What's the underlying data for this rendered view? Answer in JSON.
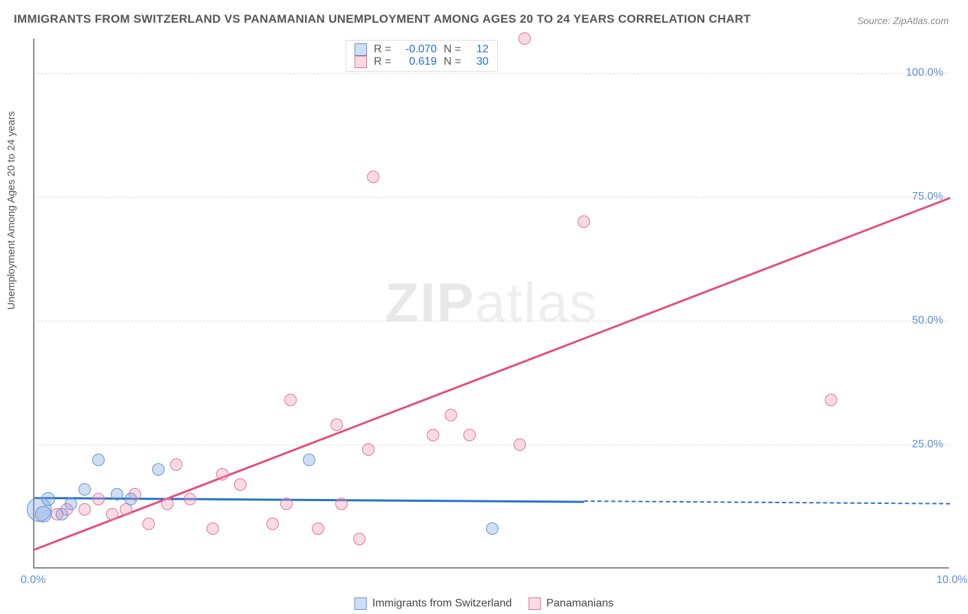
{
  "title": "IMMIGRANTS FROM SWITZERLAND VS PANAMANIAN UNEMPLOYMENT AMONG AGES 20 TO 24 YEARS CORRELATION CHART",
  "source_label": "Source: ZipAtlas.com",
  "y_axis_label": "Unemployment Among Ages 20 to 24 years",
  "watermark_bold": "ZIP",
  "watermark_light": "atlas",
  "chart": {
    "type": "scatter",
    "background_color": "#ffffff",
    "grid_color": "#dddddd",
    "axis_color": "#888888",
    "tick_color": "#5b8fd6",
    "xlim": [
      0,
      10
    ],
    "ylim": [
      0,
      107
    ],
    "x_ticks": [
      {
        "val": 0.0,
        "label": "0.0%"
      },
      {
        "val": 10.0,
        "label": "10.0%"
      }
    ],
    "y_ticks": [
      {
        "val": 25,
        "label": "25.0%"
      },
      {
        "val": 50,
        "label": "50.0%"
      },
      {
        "val": 75,
        "label": "75.0%"
      },
      {
        "val": 100,
        "label": "100.0%"
      }
    ],
    "series": [
      {
        "name": "Immigrants from Switzerland",
        "fill": "rgba(120,160,220,0.35)",
        "stroke": "#5b8fd6",
        "trend_color": "#1f6fd4",
        "trend_solid_x": [
          0,
          6.0
        ],
        "trend_dashed_x": [
          6.0,
          10.0
        ],
        "trend_y": [
          14.5,
          13.2
        ],
        "R": "-0.070",
        "N": "12",
        "points": [
          {
            "x": 0.05,
            "y": 12,
            "r": 18
          },
          {
            "x": 0.1,
            "y": 11,
            "r": 12
          },
          {
            "x": 0.15,
            "y": 14,
            "r": 10
          },
          {
            "x": 0.3,
            "y": 11,
            "r": 9
          },
          {
            "x": 0.4,
            "y": 13,
            "r": 9
          },
          {
            "x": 0.55,
            "y": 16,
            "r": 9
          },
          {
            "x": 0.7,
            "y": 22,
            "r": 9
          },
          {
            "x": 0.9,
            "y": 15,
            "r": 9
          },
          {
            "x": 1.05,
            "y": 14,
            "r": 9
          },
          {
            "x": 1.35,
            "y": 20,
            "r": 9
          },
          {
            "x": 3.0,
            "y": 22,
            "r": 9
          },
          {
            "x": 5.0,
            "y": 8,
            "r": 9
          }
        ]
      },
      {
        "name": "Panamanians",
        "fill": "rgba(240,150,180,0.35)",
        "stroke": "#e36f94",
        "trend_color": "#e84a7a",
        "trend_solid_x": [
          0,
          10.0
        ],
        "trend_y": [
          4,
          75
        ],
        "R": "0.619",
        "N": "30",
        "points": [
          {
            "x": 0.25,
            "y": 11,
            "r": 9
          },
          {
            "x": 0.35,
            "y": 12,
            "r": 9
          },
          {
            "x": 0.55,
            "y": 12,
            "r": 9
          },
          {
            "x": 0.7,
            "y": 14,
            "r": 9
          },
          {
            "x": 0.85,
            "y": 11,
            "r": 9
          },
          {
            "x": 1.0,
            "y": 12,
            "r": 9
          },
          {
            "x": 1.1,
            "y": 15,
            "r": 9
          },
          {
            "x": 1.25,
            "y": 9,
            "r": 9
          },
          {
            "x": 1.45,
            "y": 13,
            "r": 9
          },
          {
            "x": 1.55,
            "y": 21,
            "r": 9
          },
          {
            "x": 1.7,
            "y": 14,
            "r": 9
          },
          {
            "x": 1.95,
            "y": 8,
            "r": 9
          },
          {
            "x": 2.05,
            "y": 19,
            "r": 9
          },
          {
            "x": 2.25,
            "y": 17,
            "r": 9
          },
          {
            "x": 2.6,
            "y": 9,
            "r": 9
          },
          {
            "x": 2.75,
            "y": 13,
            "r": 9
          },
          {
            "x": 2.8,
            "y": 34,
            "r": 9
          },
          {
            "x": 3.1,
            "y": 8,
            "r": 9
          },
          {
            "x": 3.3,
            "y": 29,
            "r": 9
          },
          {
            "x": 3.35,
            "y": 13,
            "r": 9
          },
          {
            "x": 3.55,
            "y": 6,
            "r": 9
          },
          {
            "x": 3.65,
            "y": 24,
            "r": 9
          },
          {
            "x": 3.7,
            "y": 79,
            "r": 9
          },
          {
            "x": 4.35,
            "y": 27,
            "r": 9
          },
          {
            "x": 4.55,
            "y": 31,
            "r": 9
          },
          {
            "x": 4.75,
            "y": 27,
            "r": 9
          },
          {
            "x": 5.3,
            "y": 25,
            "r": 9
          },
          {
            "x": 5.35,
            "y": 107,
            "r": 9
          },
          {
            "x": 6.0,
            "y": 70,
            "r": 9
          },
          {
            "x": 8.7,
            "y": 34,
            "r": 9
          }
        ]
      }
    ]
  },
  "legend_top": {
    "r_label": "R =",
    "n_label": "N ="
  },
  "bottom_legend": {
    "label1": "Immigrants from Switzerland",
    "label2": "Panamanians"
  }
}
